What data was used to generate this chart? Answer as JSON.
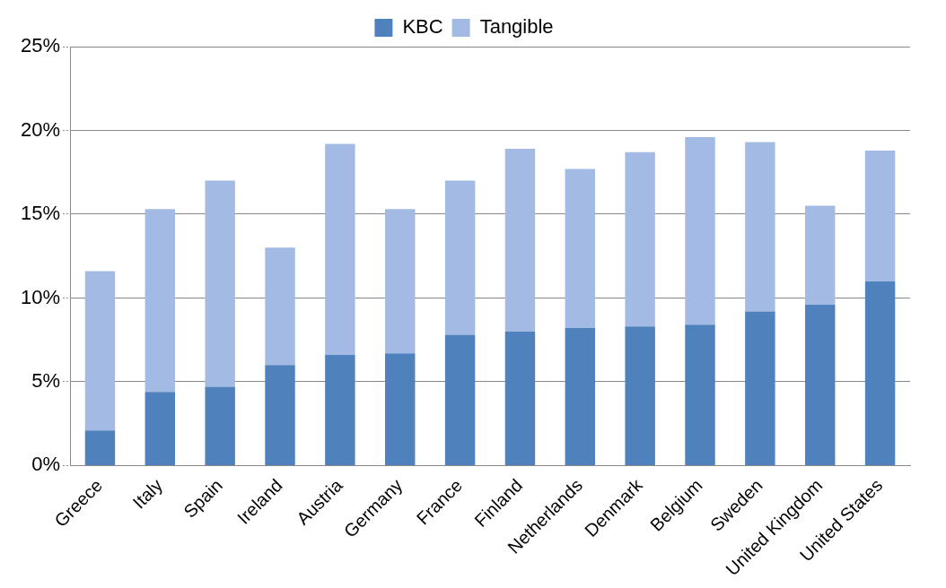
{
  "chart_data": {
    "type": "bar",
    "stacked": true,
    "categories": [
      "Greece",
      "Italy",
      "Spain",
      "Ireland",
      "Austria",
      "Germany",
      "France",
      "Finland",
      "Netherlands",
      "Denmark",
      "Belgium",
      "Sweden",
      "United Kingdom",
      "United States"
    ],
    "series": [
      {
        "name": "KBC",
        "color": "#4f81bd",
        "values": [
          2.1,
          4.4,
          4.7,
          6.0,
          6.6,
          6.7,
          7.8,
          8.0,
          8.2,
          8.3,
          8.4,
          9.2,
          9.6,
          11.0
        ]
      },
      {
        "name": "Tangible",
        "color": "#a3bbe4",
        "values": [
          9.5,
          10.9,
          12.3,
          7.0,
          12.6,
          8.6,
          9.2,
          10.9,
          9.5,
          10.4,
          11.2,
          10.1,
          5.9,
          7.8
        ]
      }
    ],
    "ylim": [
      0,
      25
    ],
    "yticks": [
      {
        "value": 0,
        "label": "0%"
      },
      {
        "value": 5,
        "label": "5%"
      },
      {
        "value": 10,
        "label": "10%"
      },
      {
        "value": 15,
        "label": "15%"
      },
      {
        "value": 20,
        "label": "20%"
      },
      {
        "value": 25,
        "label": "25%"
      }
    ],
    "grid": "y",
    "legend": "top",
    "line_style": "dotted"
  }
}
